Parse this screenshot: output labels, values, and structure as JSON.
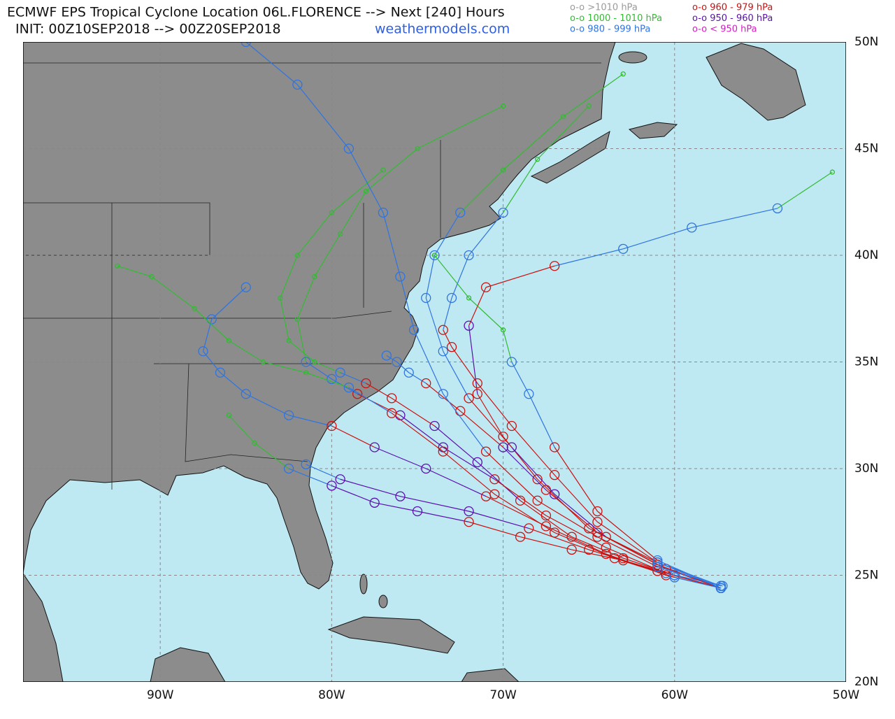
{
  "header": {
    "title": "ECMWF EPS Tropical Cyclone Location 06L.FLORENCE --> Next [240] Hours",
    "init": "INIT: 00Z10SEP2018 --> 00Z20SEP2018",
    "site": "weathermodels.com"
  },
  "legend": [
    {
      "label": "o-o >1010 hPa",
      "color": "#9a9a9a"
    },
    {
      "label": "o-o 1000 - 1010 hPa",
      "color": "#33bb33"
    },
    {
      "label": "o-o 980 - 999 hPa",
      "color": "#2f74e0"
    },
    {
      "label": "o-o 960 - 979 hPa",
      "color": "#cc1111"
    },
    {
      "label": "o-o 950 - 960 hPa",
      "color": "#5a0fb0"
    },
    {
      "label": "o-o < 950 hPa",
      "color": "#d020c0"
    }
  ],
  "map": {
    "lon_range": [
      -98,
      -50
    ],
    "lat_range": [
      20,
      50
    ],
    "grid": true,
    "lon_ticks": [
      {
        "value": -90,
        "label": "90W"
      },
      {
        "value": -80,
        "label": "80W"
      },
      {
        "value": -70,
        "label": "70W"
      },
      {
        "value": -60,
        "label": "60W"
      },
      {
        "value": -50,
        "label": "50W"
      }
    ],
    "lat_ticks": [
      {
        "value": 50,
        "label": "50N"
      },
      {
        "value": 45,
        "label": "45N"
      },
      {
        "value": 40,
        "label": "40N"
      },
      {
        "value": 35,
        "label": "35N"
      },
      {
        "value": 30,
        "label": "30N"
      },
      {
        "value": 25,
        "label": "25N"
      },
      {
        "value": 20,
        "label": "20N"
      }
    ]
  },
  "tracks": [
    {
      "points": [
        [
          -57.3,
          24.4,
          2
        ],
        [
          -60,
          25,
          2
        ],
        [
          -63,
          25.8,
          3
        ],
        [
          -66,
          26.8,
          3
        ],
        [
          -69,
          28.5,
          3
        ],
        [
          -71.5,
          30.3,
          4
        ],
        [
          -74,
          32,
          4
        ],
        [
          -76.5,
          33.3,
          3
        ],
        [
          -78,
          34,
          3
        ],
        [
          -79.5,
          34.5,
          2
        ],
        [
          -81,
          35,
          1
        ],
        [
          -82.5,
          36,
          1
        ],
        [
          -83,
          38,
          1
        ],
        [
          -82,
          40,
          1
        ],
        [
          -80,
          42,
          1
        ],
        [
          -77,
          44,
          1
        ]
      ]
    },
    {
      "points": [
        [
          -57.3,
          24.4,
          2
        ],
        [
          -60,
          25,
          2
        ],
        [
          -63,
          25.7,
          3
        ],
        [
          -66,
          26.2,
          3
        ],
        [
          -69,
          26.8,
          3
        ],
        [
          -72,
          27.5,
          3
        ],
        [
          -75,
          28,
          4
        ],
        [
          -77.5,
          28.4,
          4
        ],
        [
          -80,
          29.2,
          4
        ],
        [
          -82.5,
          30,
          2
        ],
        [
          -84.5,
          31.2,
          1
        ],
        [
          -86,
          32.5,
          1
        ]
      ]
    },
    {
      "points": [
        [
          -57.3,
          24.4,
          2
        ],
        [
          -61,
          25.2,
          3
        ],
        [
          -65,
          26.2,
          3
        ],
        [
          -68.5,
          27.2,
          3
        ],
        [
          -72,
          28,
          4
        ],
        [
          -76,
          28.7,
          4
        ],
        [
          -79.5,
          29.5,
          4
        ],
        [
          -81.5,
          30.2,
          2
        ]
      ]
    },
    {
      "points": [
        [
          -57.3,
          24.5,
          2
        ],
        [
          -61,
          25.6,
          2
        ],
        [
          -65,
          27.2,
          3
        ],
        [
          -68,
          29.5,
          3
        ],
        [
          -70,
          31.5,
          3
        ],
        [
          -71.5,
          33.5,
          3
        ],
        [
          -72,
          36.7,
          4
        ],
        [
          -71,
          38.5,
          3
        ],
        [
          -67,
          39.5,
          3
        ],
        [
          -63,
          40.3,
          2
        ],
        [
          -59,
          41.3,
          2
        ],
        [
          -54,
          42.2,
          2
        ],
        [
          -50.8,
          43.9,
          1
        ]
      ]
    },
    {
      "points": [
        [
          -57.3,
          24.4,
          2
        ],
        [
          -60.5,
          25.3,
          3
        ],
        [
          -64,
          26.8,
          3
        ],
        [
          -67,
          28.8,
          4
        ],
        [
          -69.5,
          31,
          4
        ],
        [
          -72,
          33.3,
          3
        ],
        [
          -73.5,
          35.5,
          2
        ],
        [
          -74.5,
          38,
          2
        ],
        [
          -74,
          40,
          2
        ],
        [
          -72.5,
          42,
          2
        ],
        [
          -70,
          44,
          1
        ],
        [
          -66.5,
          46.5,
          1
        ],
        [
          -63,
          48.5,
          1
        ]
      ]
    },
    {
      "points": [
        [
          -57.2,
          24.5,
          2
        ],
        [
          -60.5,
          25.1,
          2
        ],
        [
          -64,
          26.3,
          3
        ],
        [
          -67.5,
          27.8,
          3
        ],
        [
          -70.5,
          29.5,
          3
        ],
        [
          -73.5,
          31,
          4
        ],
        [
          -76,
          32.5,
          4
        ],
        [
          -78.5,
          33.5,
          3
        ],
        [
          -80,
          34.2,
          2
        ],
        [
          -81.5,
          35,
          2
        ],
        [
          -82,
          37,
          1
        ],
        [
          -81,
          39,
          1
        ],
        [
          -79.5,
          41,
          1
        ],
        [
          -78,
          43,
          1
        ],
        [
          -75,
          45,
          1
        ],
        [
          -70,
          47,
          1
        ]
      ]
    },
    {
      "points": [
        [
          -57.3,
          24.4,
          2
        ],
        [
          -61,
          25.5,
          3
        ],
        [
          -64.5,
          27,
          3
        ],
        [
          -67.5,
          29,
          3
        ],
        [
          -70,
          31,
          4
        ],
        [
          -72.5,
          32.7,
          3
        ],
        [
          -74.5,
          34,
          3
        ],
        [
          -75.5,
          34.5,
          2
        ],
        [
          -76.2,
          35,
          2
        ],
        [
          -76.8,
          35.3,
          2
        ]
      ]
    },
    {
      "points": [
        [
          -57.3,
          24.4,
          2
        ],
        [
          -61,
          25.6,
          2
        ],
        [
          -64.5,
          27.5,
          3
        ],
        [
          -67,
          29.7,
          3
        ],
        [
          -69.5,
          32,
          3
        ],
        [
          -71.5,
          34,
          3
        ],
        [
          -73,
          35.7,
          3
        ],
        [
          -73.5,
          36.5,
          3
        ],
        [
          -73,
          38,
          2
        ],
        [
          -72,
          40,
          2
        ],
        [
          -70,
          42,
          2
        ],
        [
          -68,
          44.5,
          1
        ],
        [
          -65,
          47,
          1
        ]
      ]
    },
    {
      "points": [
        [
          -57.3,
          24.4,
          2
        ],
        [
          -60.5,
          25,
          3
        ],
        [
          -64,
          26,
          3
        ],
        [
          -67.5,
          27.3,
          3
        ],
        [
          -71,
          28.7,
          3
        ],
        [
          -74.5,
          30,
          4
        ],
        [
          -77.5,
          31,
          4
        ],
        [
          -80,
          32,
          3
        ],
        [
          -82.5,
          32.5,
          2
        ],
        [
          -85,
          33.5,
          2
        ],
        [
          -86.5,
          34.5,
          2
        ],
        [
          -87.5,
          35.5,
          2
        ],
        [
          -87,
          37,
          2
        ],
        [
          -85,
          38.5,
          2
        ]
      ]
    },
    {
      "points": [
        [
          -57.3,
          24.4,
          2
        ],
        [
          -61,
          25.7,
          2
        ],
        [
          -64.5,
          28,
          3
        ],
        [
          -67,
          31,
          3
        ],
        [
          -68.5,
          33.5,
          2
        ],
        [
          -69.5,
          35,
          2
        ],
        [
          -70,
          36.5,
          1
        ],
        [
          -72,
          38,
          1
        ],
        [
          -74,
          40,
          1
        ]
      ]
    },
    {
      "points": [
        [
          -57.3,
          24.4,
          2
        ],
        [
          -60,
          24.9,
          2
        ],
        [
          -63.5,
          25.8,
          3
        ],
        [
          -67,
          27,
          3
        ],
        [
          -70.5,
          28.8,
          3
        ],
        [
          -73.5,
          30.8,
          3
        ],
        [
          -76.5,
          32.6,
          3
        ],
        [
          -79,
          33.8,
          2
        ],
        [
          -81.5,
          34.5,
          1
        ],
        [
          -84,
          35,
          1
        ],
        [
          -86,
          36,
          1
        ],
        [
          -88,
          37.5,
          1
        ],
        [
          -90.5,
          39,
          1
        ],
        [
          -92.5,
          39.5,
          1
        ]
      ]
    },
    {
      "points": [
        [
          -57.3,
          24.5,
          2
        ],
        [
          -61,
          25.4,
          2
        ],
        [
          -64.5,
          26.8,
          3
        ],
        [
          -68,
          28.5,
          3
        ],
        [
          -71,
          30.8,
          3
        ],
        [
          -73.5,
          33.5,
          2
        ],
        [
          -75.2,
          36.5,
          2
        ],
        [
          -76,
          39,
          2
        ],
        [
          -77,
          42,
          2
        ],
        [
          -79,
          45,
          2
        ],
        [
          -82,
          48,
          2
        ],
        [
          -85,
          50,
          2
        ]
      ]
    }
  ]
}
